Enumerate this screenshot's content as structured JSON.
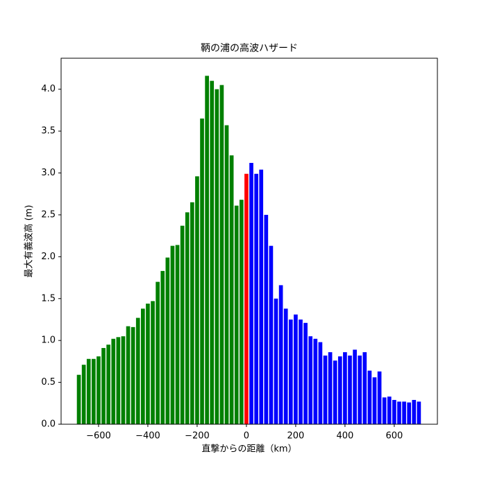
{
  "chart_data": {
    "type": "bar",
    "title": "鞆の浦の高波ハザード",
    "x_label": "直撃からの距離（km）",
    "y_label": "最大有義波高 (m)",
    "series": [
      {
        "color": "green",
        "x": [
          -680,
          -660,
          -640,
          -620,
          -600,
          -580,
          -560,
          -540,
          -520,
          -500,
          -480,
          -460,
          -440,
          -420,
          -400,
          -380,
          -360,
          -340,
          -320,
          -300,
          -280,
          -260,
          -240,
          -220,
          -200,
          -180,
          -160,
          -140,
          -120,
          -100,
          -80,
          -60,
          -40,
          -20
        ],
        "values": [
          0.59,
          0.71,
          0.78,
          0.78,
          0.81,
          0.91,
          0.95,
          1.02,
          1.04,
          1.05,
          1.17,
          1.16,
          1.27,
          1.38,
          1.44,
          1.47,
          1.7,
          1.83,
          1.99,
          2.13,
          2.14,
          2.37,
          2.53,
          2.65,
          2.96,
          3.65,
          4.16,
          4.1,
          4.0,
          4.05,
          3.57,
          3.21,
          2.61,
          2.68
        ]
      },
      {
        "color": "red",
        "x": [
          0
        ],
        "values": [
          2.99
        ]
      },
      {
        "color": "blue",
        "x": [
          20,
          40,
          60,
          80,
          100,
          120,
          140,
          160,
          180,
          200,
          220,
          240,
          260,
          280,
          300,
          320,
          340,
          360,
          380,
          400,
          420,
          440,
          460,
          480,
          500,
          520,
          540,
          560,
          580,
          600,
          620,
          640,
          660,
          680,
          700
        ],
        "values": [
          3.12,
          2.99,
          3.04,
          2.5,
          2.13,
          1.5,
          1.66,
          1.38,
          1.25,
          1.31,
          1.25,
          1.21,
          1.05,
          1.02,
          0.98,
          0.82,
          0.86,
          0.76,
          0.81,
          0.86,
          0.82,
          0.89,
          0.82,
          0.86,
          0.64,
          0.56,
          0.63,
          0.32,
          0.33,
          0.29,
          0.27,
          0.27,
          0.26,
          0.29,
          0.27
        ]
      }
    ],
    "bar_width": 16,
    "xlim": [
      -752,
      775
    ],
    "ylim": [
      0,
      4.37
    ],
    "xticks": [
      {
        "value": -600,
        "label": "−600"
      },
      {
        "value": -400,
        "label": "−400"
      },
      {
        "value": -200,
        "label": "−200"
      },
      0,
      200,
      400,
      600
    ],
    "yticks": [
      {
        "value": 0,
        "label": "0.0"
      },
      {
        "value": 0.5,
        "label": "0.5"
      },
      {
        "value": 1,
        "label": "1.0"
      },
      {
        "value": 1.5,
        "label": "1.5"
      },
      {
        "value": 2,
        "label": "2.0"
      },
      {
        "value": 2.5,
        "label": "2.5"
      },
      {
        "value": 3,
        "label": "3.0"
      },
      {
        "value": 3.5,
        "label": "3.5"
      },
      {
        "value": 4,
        "label": "4.0"
      }
    ],
    "grid": false
  }
}
